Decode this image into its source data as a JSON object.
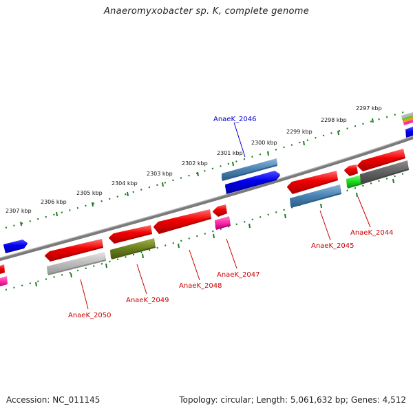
{
  "title": "Anaeromyxobacter sp. K, complete genome",
  "accession_label": "Accession: NC_011145",
  "topology_label": "Topology: circular; Length: 5,061,632 bp; Genes: 4,512",
  "kbp_labels": [
    "2307 kbp",
    "2306 kbp",
    "2305 kbp",
    "2304 kbp",
    "2303 kbp",
    "2302 kbp",
    "2301 kbp",
    "2300 kbp",
    "2299 kbp",
    "2298 kbp",
    "2297 kbp"
  ],
  "gene_labels": {
    "g2046": "AnaeK_2046",
    "g2050": "AnaeK_2050",
    "g2049": "AnaeK_2049",
    "g2048": "AnaeK_2048",
    "g2047": "AnaeK_2047",
    "g2045": "AnaeK_2045",
    "g2044": "AnaeK_2044"
  },
  "colors": {
    "backbone": "#8a8a8a",
    "tick_track": "#1f7a1f",
    "forward_cds": "#0000ee",
    "reverse_cds": "#ee0000",
    "highlight_label": "#0000cc",
    "label_red": "#cc0000"
  }
}
